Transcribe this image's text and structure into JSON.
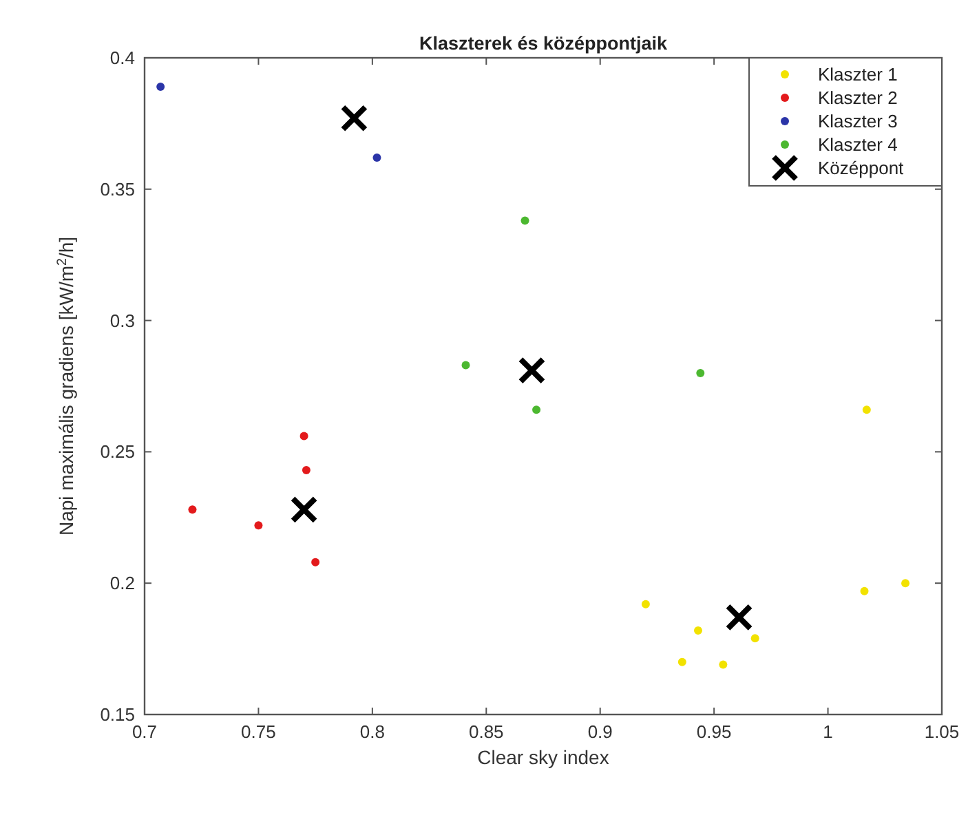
{
  "chart_data": {
    "type": "scatter",
    "title": "Klaszterek és középpontjaik",
    "xlabel": "Clear sky index",
    "ylabel": "Napi maximális gradiens [kW/m$^{2}$/h]",
    "xlim": [
      0.7,
      1.05
    ],
    "xticks": [
      0.7,
      0.75,
      0.8,
      0.85,
      0.9,
      0.95,
      1,
      1.05
    ],
    "ylim": [
      0.15,
      0.4
    ],
    "yticks": [
      0.15,
      0.2,
      0.25,
      0.3,
      0.35,
      0.4
    ],
    "grid": false,
    "legend": "top right",
    "series": [
      {
        "name": "Klaszter 1",
        "color": "#f2e200",
        "marker": "circle",
        "x": [
          1.017,
          0.92,
          0.943,
          0.936,
          0.954,
          0.968,
          1.016,
          1.034
        ],
        "values": [
          0.266,
          0.192,
          0.182,
          0.17,
          0.169,
          0.179,
          0.197,
          0.2
        ]
      },
      {
        "name": "Klaszter 2",
        "color": "#e31a1c",
        "marker": "circle",
        "x": [
          0.721,
          0.75,
          0.77,
          0.771,
          0.775
        ],
        "values": [
          0.228,
          0.222,
          0.256,
          0.243,
          0.208
        ]
      },
      {
        "name": "Klaszter 3",
        "color": "#2b35a8",
        "marker": "circle",
        "x": [
          0.707,
          0.802
        ],
        "values": [
          0.389,
          0.362
        ]
      },
      {
        "name": "Klaszter 4",
        "color": "#4cb830",
        "marker": "circle",
        "x": [
          0.867,
          0.841,
          0.872,
          0.944
        ],
        "values": [
          0.338,
          0.283,
          0.266,
          0.28
        ]
      },
      {
        "name": "Középpont",
        "color": "#000000",
        "marker": "cross",
        "x": [
          0.792,
          0.87,
          0.77,
          0.961
        ],
        "values": [
          0.377,
          0.281,
          0.228,
          0.187
        ]
      }
    ]
  }
}
